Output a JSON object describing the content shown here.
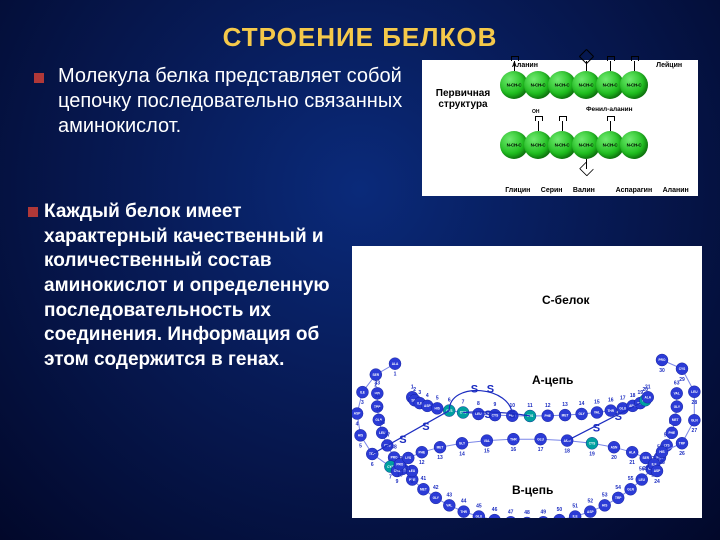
{
  "title": "СТРОЕНИЕ БЕЛКОВ",
  "bullet1": "Молекула белка представляет собой цепочку последовательно связанных  аминокислот.",
  "bullet2": "Каждый белок имеет характерный качественный и количественный состав аминокислот и определенную последовательность их соединения. Информация об этом содержится в генах.",
  "colors": {
    "background_center": "#0a2a7a",
    "background_edge": "#02082a",
    "title": "#f5c94a",
    "bullet_square": "#b03838",
    "text": "#ffffff",
    "diagram_bg": "#ffffff",
    "bead_green": "#1fbf1f",
    "bead_blue": "#2b3bd6",
    "bead_cys": "#00a0a0",
    "ss_stroke": "#1b2cc0"
  },
  "top_diagram": {
    "primary_label": "Первичная структура",
    "bond_text": "N-CH-C",
    "rows": 2,
    "beads_per_row": 6,
    "labels_top": [
      "Аланин",
      "",
      "",
      "",
      "",
      "Лейцин"
    ],
    "labels_mid": [
      "",
      "",
      "",
      "Фенил-аланин",
      "",
      ""
    ],
    "labels_bot": [
      "Глицин",
      "Серин",
      "Валин",
      "",
      "Аспарагин",
      "Аланин"
    ]
  },
  "bottom_diagram": {
    "labels": {
      "c": "C-белок",
      "a": "A-цепь",
      "b": "B-цепь"
    },
    "aa3": [
      "GLY",
      "ALA",
      "LEU",
      "VAL",
      "SER",
      "CYS",
      "THR",
      "ILE",
      "PRO",
      "GLU",
      "ASP",
      "LYS",
      "ARG",
      "HIS",
      "PHE",
      "TYR",
      "TRP",
      "MET",
      "ASN",
      "GLN"
    ],
    "c_chain": {
      "count": 31,
      "start_num": 33,
      "radius": 6
    },
    "a_chain": {
      "count": 21,
      "start_num": 1,
      "radius": 6
    },
    "b_chain": {
      "count": 30,
      "start_num": 1,
      "radius": 6
    },
    "cys_indices": {
      "a": [
        5,
        6,
        10,
        19
      ],
      "b": [
        6,
        18
      ]
    },
    "ss_bonds": [
      {
        "from": "a6",
        "to": "a10"
      },
      {
        "from": "a6",
        "to": "b6"
      },
      {
        "from": "a19",
        "to": "b18"
      }
    ]
  }
}
